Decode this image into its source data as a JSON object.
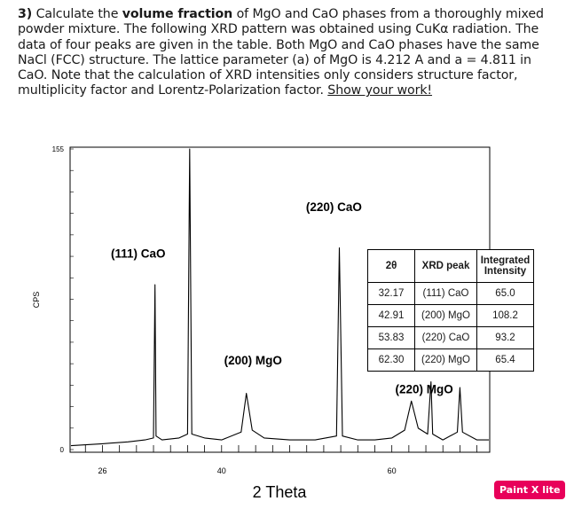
{
  "problem": {
    "num": "3)",
    "t1": " Calculate the ",
    "bold": "volume fraction",
    "t2": " of MgO and CaO phases from a thoroughly mixed powder mixture. The following XRD pattern was obtained using CuKα radiation. The data of four peaks are given in the table. Both MgO and CaO phases have the same NaCl (FCC) structure. The lattice parameter (a) of MgO is 4.212 A and a = 4.811 in CaO. Note that the calculation of XRD intensities only considers structure factor, multiplicity factor and Lorentz-Polarization factor. ",
    "underline": "Show your work!"
  },
  "chart_data": {
    "type": "line",
    "xlabel": "2 Theta",
    "ylabel": "CPS",
    "xlim": [
      22.2,
      71.5
    ],
    "ylim": [
      0,
      155
    ],
    "x_ticks": [
      26,
      40,
      60
    ],
    "y_ticks": [
      0,
      155
    ],
    "grid": false,
    "series": [
      {
        "x": [
          22.3,
          26,
          29,
          31,
          32.0,
          32.17,
          32.3,
          33,
          35,
          36.0,
          36.25,
          36.5,
          38,
          40,
          42.3,
          42.91,
          43.6,
          45,
          48,
          51,
          53.5,
          53.83,
          54.2,
          56,
          58,
          60,
          61.5,
          62.3,
          63.1,
          64.2,
          64.6,
          64.8,
          66,
          67.7,
          68.0,
          68.3,
          70,
          71.4
        ],
        "y": [
          2,
          3,
          4,
          5,
          6,
          85,
          7,
          5,
          6,
          8,
          155,
          8,
          6,
          5,
          9,
          29,
          10,
          6,
          5,
          5,
          7,
          104,
          7,
          5,
          5,
          6,
          10,
          25,
          11,
          8,
          35,
          8,
          5,
          9,
          32,
          9,
          5,
          5
        ]
      }
    ],
    "annotations": [
      {
        "text": "(111) CaO",
        "x": 30.2,
        "y": 99
      },
      {
        "text": "(220) CaO",
        "x": 53.2,
        "y": 123
      },
      {
        "text": "(200) MgO",
        "x": 43.7,
        "y": 44
      },
      {
        "text": "(220) MgO",
        "x": 63.8,
        "y": 29
      }
    ],
    "table": {
      "headers": [
        "2θ",
        "XRD peak",
        "Integrated Intensity"
      ],
      "rows": [
        [
          "32.17",
          "(111) CaO",
          "65.0"
        ],
        [
          "42.91",
          "(200) MgO",
          "108.2"
        ],
        [
          "53.83",
          "(220) CaO",
          "93.2"
        ],
        [
          "62.30",
          "(220) MgO",
          "65.4"
        ]
      ]
    }
  },
  "brand": "Paint X lite",
  "colors": {
    "brand": "#e8005a",
    "line": "#000000"
  }
}
